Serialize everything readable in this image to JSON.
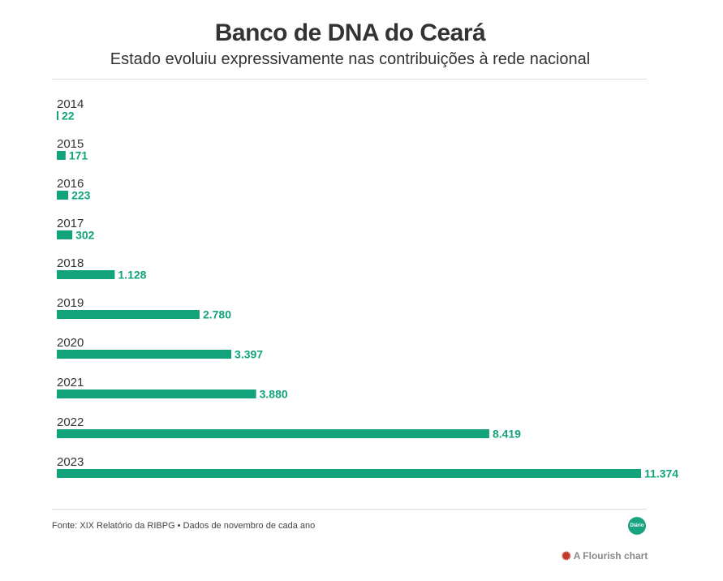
{
  "header": {
    "title": "Banco de DNA do Ceará",
    "subtitle": "Estado evoluiu expressivamente nas contribuições à rede nacional"
  },
  "chart_data": {
    "type": "bar",
    "orientation": "horizontal",
    "title": "Banco de DNA do Ceará",
    "subtitle": "Estado evoluiu expressivamente nas contribuições à rede nacional",
    "xlabel": "",
    "ylabel": "",
    "categories": [
      "2014",
      "2015",
      "2016",
      "2017",
      "2018",
      "2019",
      "2020",
      "2021",
      "2022",
      "2023"
    ],
    "values": [
      22,
      171,
      223,
      302,
      1128,
      2780,
      3397,
      3880,
      8419,
      11374
    ],
    "value_labels": [
      "22",
      "171",
      "223",
      "302",
      "1.128",
      "2.780",
      "3.397",
      "3.880",
      "8.419",
      "11.374"
    ],
    "xlim": [
      0,
      11374
    ],
    "grid": false,
    "legend": "none",
    "color": "#12a37a"
  },
  "footer": {
    "source": "Fonte: XIX Relatório da RIBPG • Dados de novembro de cada ano",
    "logo_text": "Diário",
    "credit": "A Flourish chart"
  },
  "icons": {
    "logo": "diario-logo-icon",
    "flourish": "flourish-logo-icon"
  }
}
